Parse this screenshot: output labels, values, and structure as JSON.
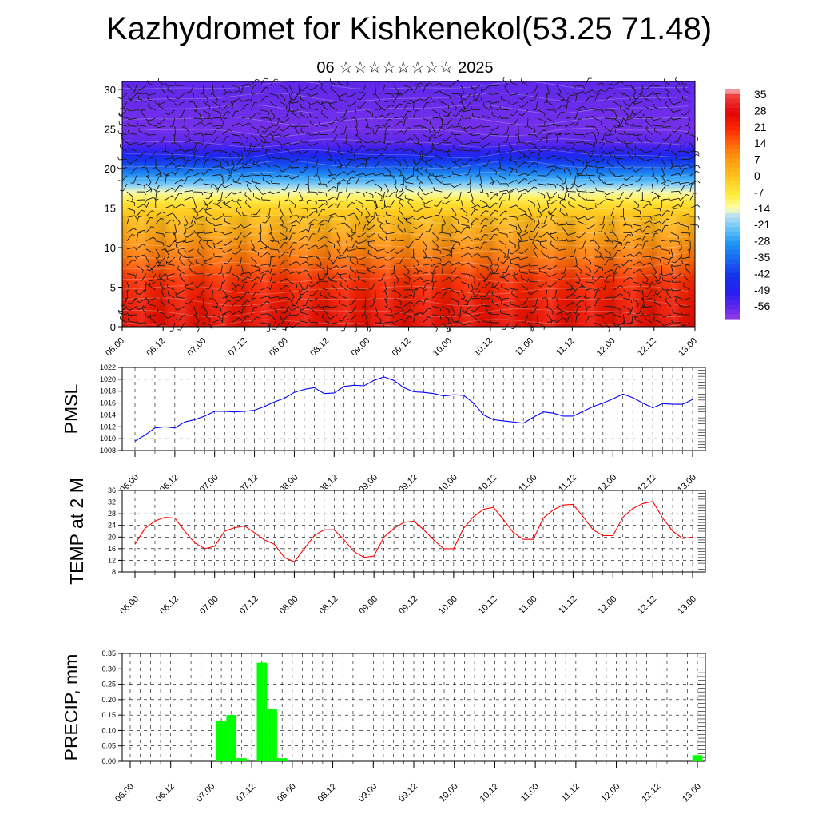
{
  "header": {
    "title": "Kazhydromet for Kishkenekol(53.25 71.48)",
    "subtitle": "06 ☆☆☆☆☆☆☆☆ 2025"
  },
  "time_labels": [
    "06.00",
    "06.12",
    "07.00",
    "07.12",
    "08.00",
    "08.12",
    "09.00",
    "09.12",
    "10.00",
    "10.12",
    "11.00",
    "11.12",
    "12.00",
    "12.12",
    "13.00"
  ],
  "chart_data": [
    {
      "type": "heatmap",
      "description_key": "upper-panel",
      "xlabel": "",
      "ylabel": "",
      "y_ticks": [
        0,
        5,
        10,
        15,
        20,
        25,
        30
      ],
      "ylim": [
        0,
        31
      ],
      "colorbar": {
        "labels": [
          "35",
          "28",
          "21",
          "14",
          "7",
          "0",
          "-7",
          "-14",
          "-21",
          "-28",
          "-35",
          "-42",
          "-49",
          "-56"
        ],
        "values": [
          35,
          28,
          21,
          14,
          7,
          0,
          -7,
          -14,
          -21,
          -28,
          -35,
          -42,
          -49,
          -56
        ]
      },
      "temperature_profile": {
        "levels": [
          0,
          3,
          6,
          9,
          12,
          15,
          16.5,
          18,
          20,
          22,
          23,
          25,
          28,
          31
        ],
        "values": [
          26,
          24,
          20,
          12,
          5,
          -2,
          -10,
          -20,
          -35,
          -48,
          -54,
          -57,
          -56,
          -55
        ]
      },
      "wind_barbs": "on",
      "contours": "on"
    },
    {
      "type": "line",
      "description_key": "pmsl-panel",
      "ylabel": "PMSL",
      "ylim": [
        1008,
        1022
      ],
      "y_ticks": [
        1008,
        1010,
        1012,
        1014,
        1016,
        1018,
        1020,
        1022
      ],
      "grid": true,
      "color": "#0000ff",
      "values": [
        1009.6,
        1010.6,
        1011.8,
        1012.0,
        1011.8,
        1012.8,
        1013.2,
        1013.8,
        1014.6,
        1014.6,
        1014.5,
        1014.6,
        1014.8,
        1015.4,
        1016.2,
        1016.8,
        1017.8,
        1018.3,
        1018.6,
        1017.6,
        1017.7,
        1018.8,
        1019.0,
        1018.9,
        1019.8,
        1020.4,
        1019.8,
        1018.6,
        1017.9,
        1017.8,
        1017.6,
        1017.2,
        1017.4,
        1017.3,
        1016.0,
        1014.0,
        1013.2,
        1013.0,
        1012.8,
        1012.6,
        1013.6,
        1014.5,
        1014.3,
        1013.8,
        1013.8,
        1014.6,
        1015.4,
        1016.0,
        1016.7,
        1017.5,
        1016.9,
        1016.0,
        1015.2,
        1015.9,
        1015.8,
        1015.8,
        1016.6
      ]
    },
    {
      "type": "line",
      "description_key": "temp-panel",
      "ylabel": "TEMP at 2 M",
      "ylim": [
        8,
        36
      ],
      "y_ticks": [
        8,
        12,
        16,
        20,
        24,
        28,
        32,
        36
      ],
      "grid": true,
      "color": "#ff0000",
      "values": [
        17.5,
        23.0,
        25.5,
        26.8,
        26.5,
        22.0,
        18.0,
        16.0,
        16.8,
        22.0,
        23.2,
        23.8,
        21.5,
        19.0,
        17.5,
        13.0,
        11.5,
        16.0,
        20.5,
        22.5,
        22.5,
        19.0,
        15.0,
        13.0,
        13.5,
        20.0,
        23.0,
        25.0,
        25.5,
        22.5,
        19.0,
        16.0,
        16.0,
        23.0,
        27.0,
        29.5,
        30.2,
        26.0,
        21.5,
        19.2,
        19.2,
        26.5,
        29.3,
        31.0,
        31.2,
        27.0,
        22.5,
        20.5,
        20.5,
        26.8,
        29.8,
        31.5,
        32.2,
        26.5,
        22.0,
        19.5,
        20.0
      ]
    },
    {
      "type": "bar",
      "description_key": "precip-panel",
      "ylabel": "PRECIP, mm",
      "ylim": [
        0,
        0.35
      ],
      "y_ticks": [
        "0.00",
        "0.05",
        "0.10",
        "0.15",
        "0.20",
        "0.25",
        "0.30",
        "0.35"
      ],
      "grid": true,
      "color": "#00ff00",
      "values": [
        0,
        0,
        0,
        0,
        0,
        0,
        0,
        0,
        0,
        0.13,
        0.15,
        0.01,
        0,
        0.32,
        0.17,
        0.01,
        0,
        0,
        0,
        0,
        0,
        0,
        0,
        0,
        0,
        0,
        0,
        0,
        0,
        0,
        0,
        0,
        0,
        0,
        0,
        0,
        0,
        0,
        0,
        0,
        0,
        0,
        0,
        0,
        0,
        0,
        0,
        0,
        0,
        0,
        0,
        0,
        0,
        0,
        0,
        0,
        0.02
      ]
    }
  ]
}
